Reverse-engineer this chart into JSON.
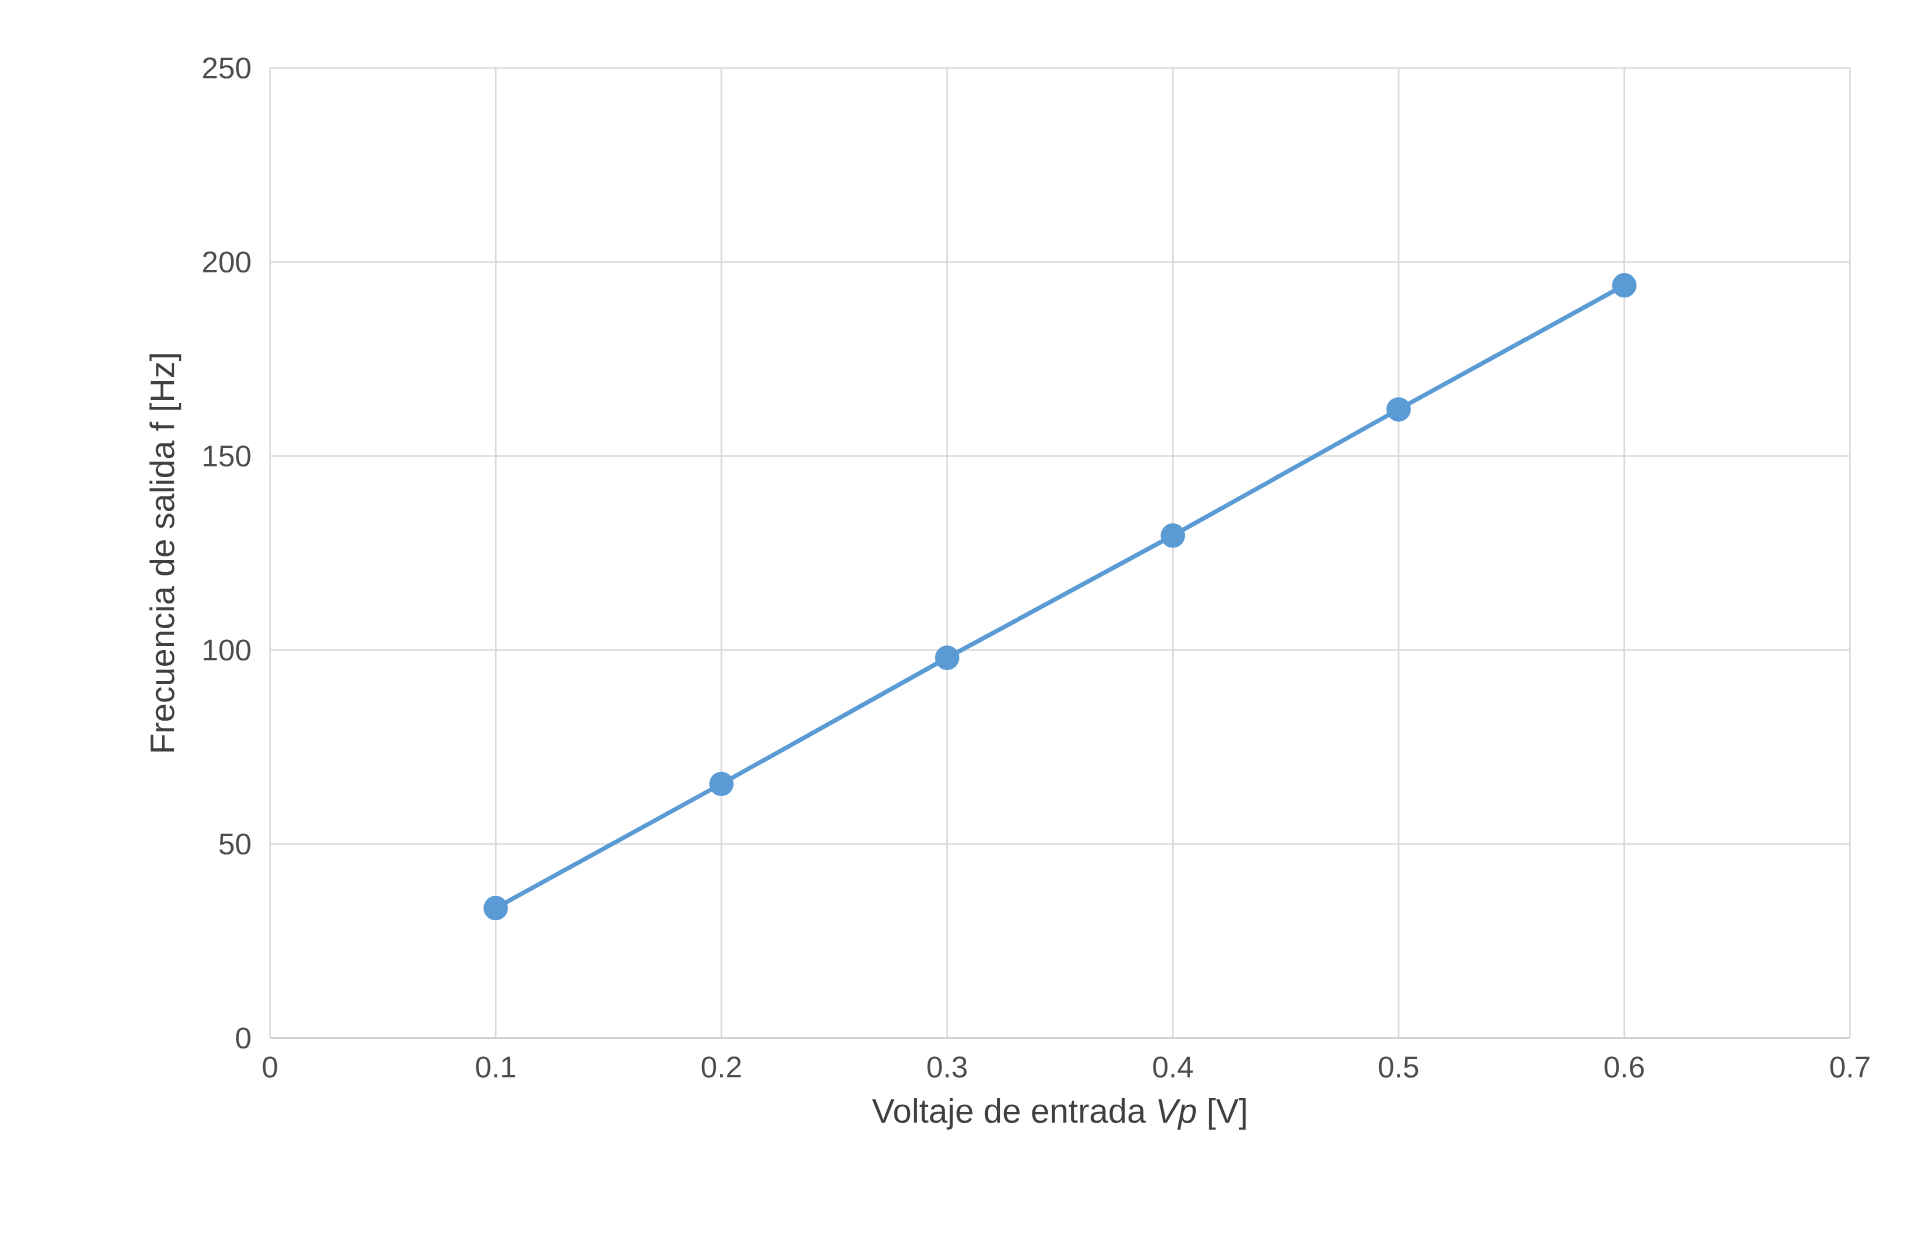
{
  "chart_data": {
    "type": "line",
    "xlabel": "Voltaje de entrada *Vp*   [V]",
    "ylabel": "Frecuencia de salida f  [Hz]",
    "x": [
      0.1,
      0.2,
      0.3,
      0.4,
      0.5,
      0.6
    ],
    "series": [
      {
        "color": "#5b9bd5",
        "values": [
          33.5,
          65.5,
          98,
          129.5,
          162,
          194
        ]
      }
    ],
    "xlim": [
      0,
      0.7
    ],
    "xticks": [
      0,
      0.1,
      0.2,
      0.3,
      0.4,
      0.5,
      0.6,
      0.7
    ],
    "ylim": [
      0,
      250
    ],
    "yticks": [
      0,
      50,
      100,
      150,
      200,
      250
    ],
    "grid": true,
    "marker": "circle",
    "line_style": "solid"
  }
}
